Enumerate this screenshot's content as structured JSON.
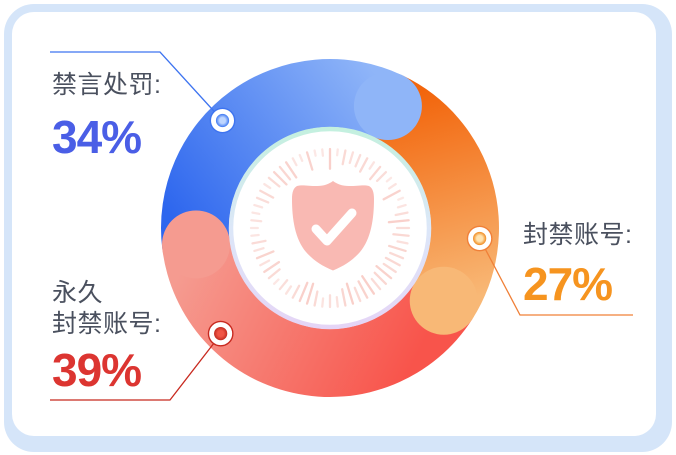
{
  "chart_data": {
    "type": "pie",
    "subtype": "donut",
    "title": "",
    "unit": "%",
    "direction": "clockwise",
    "start_angle_deg": 263,
    "legend_position": "callouts-around-donut",
    "center_icon": "shield-check",
    "segments": [
      {
        "label": "禁言处罚",
        "label_display": "禁言处罚:",
        "value": 34,
        "value_display": "34%",
        "grad": [
          "#2D66EE",
          "#8FB5F8"
        ],
        "line": "#3E74F0",
        "value_text": "#4A5EE6",
        "dot": [
          "#BFD6FF",
          "#3E78F2"
        ]
      },
      {
        "label": "封禁账号",
        "label_display": "封禁账号:",
        "value": 27,
        "value_display": "27%",
        "grad": [
          "#F2650C",
          "#F8B876"
        ],
        "line": "#F08038",
        "value_text": "#F6941F",
        "dot": [
          "#FFE3B0",
          "#F08A1F"
        ]
      },
      {
        "label": "永久封禁账号",
        "label_lines": [
          "永久",
          "封禁账号:"
        ],
        "value": 39,
        "value_display": "39%",
        "grad": [
          "#F8544B",
          "#F59B90"
        ],
        "line": "#C8291F",
        "value_text": "#DC3531",
        "dot": [
          "#F05545",
          "#C12A1F"
        ]
      }
    ]
  },
  "colors": {
    "frame": "#D5E5F9",
    "card": "#FFFFFF",
    "label_text": "#4A505E",
    "inner_ring_gradient": [
      "#C3F0DE",
      "#DCE7F8",
      "#E5D4F6"
    ],
    "dial_tick": "#F9CFC9",
    "shield": "#F9B9B3",
    "check": "#FFFFFF"
  }
}
